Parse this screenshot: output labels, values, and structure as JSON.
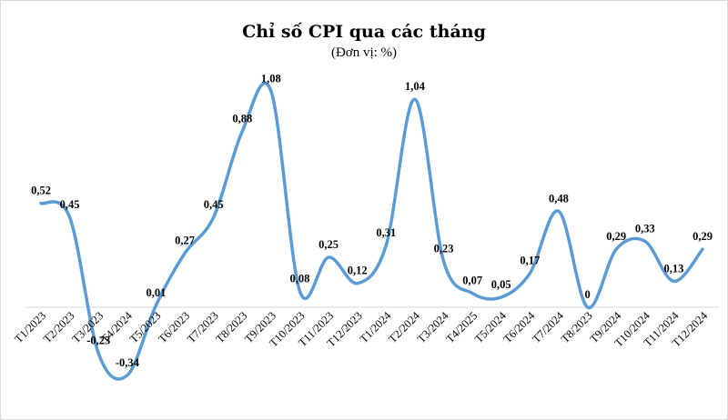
{
  "chart_data": {
    "type": "line",
    "title": "Chỉ số CPI qua các tháng",
    "subtitle": "(Đơn vị: %)",
    "smooth": true,
    "line_color": "#5b9bd5",
    "categories": [
      "T1/2023",
      "T2/2023",
      "T3/2023",
      "T4/2024",
      "T5/2023",
      "T6/2023",
      "T7/2023",
      "T8/2023",
      "T9/2023",
      "T10/2023",
      "T11/2023",
      "T12/2023",
      "T1/2024",
      "T2/2024",
      "T3/2024",
      "T4/2025",
      "T5/2024",
      "T6/2024",
      "T7/2024",
      "T8/2023",
      "T9/2024",
      "T10/2024",
      "T11/2024",
      "T12/2024"
    ],
    "values": [
      0.52,
      0.45,
      -0.23,
      -0.34,
      0.01,
      0.27,
      0.45,
      0.88,
      1.08,
      0.08,
      0.25,
      0.12,
      0.31,
      1.04,
      0.23,
      0.07,
      0.05,
      0.17,
      0.48,
      0,
      0.29,
      0.33,
      0.13,
      0.29
    ],
    "value_labels": [
      "0,52",
      "0,45",
      "-0,23",
      "-0,34",
      "0,01",
      "0,27",
      "0,45",
      "0,88",
      "1,08",
      "0,08",
      "0,25",
      "0,12",
      "0,31",
      "1,04",
      "0,23",
      "0,07",
      "0,05",
      "0,17",
      "0,48",
      "0",
      "0,29",
      "0,33",
      "0,13",
      "0,29"
    ],
    "xlabel": "",
    "ylabel": "",
    "ylim": [
      -0.45,
      1.2
    ],
    "grid": false,
    "legend": "none"
  }
}
